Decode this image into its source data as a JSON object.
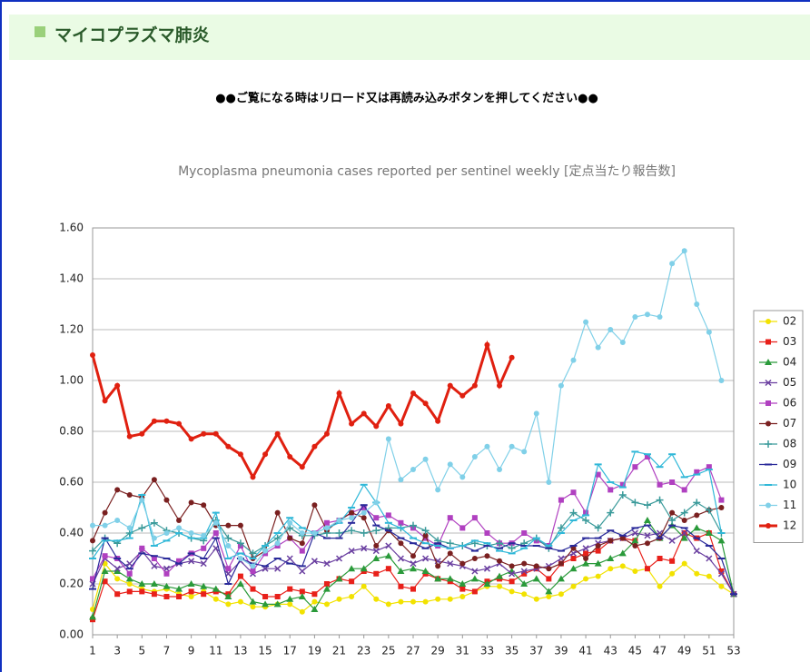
{
  "header": {
    "title": "マイコプラズマ肺炎"
  },
  "notice": "●●ご覧になる時はリロード又は再読み込みボタンを押してください●●",
  "chart_data": {
    "type": "line",
    "title": "Mycoplasma pneumonia cases reported per sentinel weekly [定点当たり報告数]",
    "x": [
      1,
      2,
      3,
      4,
      5,
      6,
      7,
      8,
      9,
      10,
      11,
      12,
      13,
      14,
      15,
      16,
      17,
      18,
      19,
      20,
      21,
      22,
      23,
      24,
      25,
      26,
      27,
      28,
      29,
      30,
      31,
      32,
      33,
      34,
      35,
      36,
      37,
      38,
      39,
      40,
      41,
      42,
      43,
      44,
      45,
      46,
      47,
      48,
      49,
      50,
      51,
      52,
      53
    ],
    "xlim": [
      1,
      53
    ],
    "xticks": [
      1,
      3,
      5,
      7,
      9,
      11,
      13,
      15,
      17,
      19,
      21,
      23,
      25,
      27,
      29,
      31,
      33,
      35,
      37,
      39,
      41,
      43,
      45,
      47,
      49,
      51,
      53
    ],
    "ylim": [
      0,
      1.6
    ],
    "yticks": [
      {
        "value": 0,
        "label": "0.00"
      },
      {
        "value": 0.2,
        "label": "0.20"
      },
      {
        "value": 0.4,
        "label": "0.40"
      },
      {
        "value": 0.6,
        "label": "0.60"
      },
      {
        "value": 0.8,
        "label": "0.80"
      },
      {
        "value": 1.0,
        "label": "1.00"
      },
      {
        "value": 1.2,
        "label": "1.20"
      },
      {
        "value": 1.4,
        "label": "1.40"
      },
      {
        "value": 1.6,
        "label": "1.60"
      }
    ],
    "grid": true,
    "legend": "right",
    "series": [
      {
        "name": "02",
        "color": "#f2e200",
        "marker": "circle",
        "values": [
          0.1,
          0.28,
          0.22,
          0.2,
          0.18,
          0.17,
          0.18,
          0.16,
          0.15,
          0.17,
          0.14,
          0.12,
          0.13,
          0.11,
          0.11,
          0.12,
          0.12,
          0.09,
          0.13,
          0.12,
          0.14,
          0.15,
          0.19,
          0.14,
          0.12,
          0.13,
          0.13,
          0.13,
          0.14,
          0.14,
          0.15,
          0.17,
          0.19,
          0.19,
          0.17,
          0.16,
          0.14,
          0.15,
          0.16,
          0.19,
          0.22,
          0.23,
          0.26,
          0.27,
          0.25,
          0.26,
          0.19,
          0.24,
          0.28,
          0.24,
          0.23,
          0.19,
          0.16
        ]
      },
      {
        "name": "03",
        "color": "#e8201a",
        "marker": "square",
        "values": [
          0.06,
          0.21,
          0.16,
          0.17,
          0.17,
          0.16,
          0.15,
          0.15,
          0.17,
          0.16,
          0.17,
          0.16,
          0.23,
          0.18,
          0.15,
          0.15,
          0.18,
          0.17,
          0.16,
          0.2,
          0.22,
          0.21,
          0.25,
          0.24,
          0.26,
          0.19,
          0.18,
          0.24,
          0.22,
          0.21,
          0.18,
          0.17,
          0.21,
          0.22,
          0.21,
          0.24,
          0.26,
          0.22,
          0.28,
          0.3,
          0.32,
          0.33,
          0.37,
          0.38,
          0.37,
          0.26,
          0.3,
          0.29,
          0.4,
          0.38,
          0.4,
          0.25,
          0.16
        ]
      },
      {
        "name": "04",
        "color": "#2a9a3a",
        "marker": "triangle",
        "values": [
          0.07,
          0.25,
          0.25,
          0.22,
          0.2,
          0.2,
          0.19,
          0.18,
          0.2,
          0.19,
          0.18,
          0.15,
          0.2,
          0.13,
          0.12,
          0.12,
          0.14,
          0.15,
          0.1,
          0.18,
          0.22,
          0.26,
          0.26,
          0.3,
          0.31,
          0.25,
          0.26,
          0.25,
          0.22,
          0.22,
          0.2,
          0.22,
          0.2,
          0.23,
          0.25,
          0.2,
          0.22,
          0.17,
          0.22,
          0.26,
          0.28,
          0.28,
          0.3,
          0.32,
          0.37,
          0.45,
          0.38,
          0.43,
          0.38,
          0.42,
          0.4,
          0.37,
          0.16
        ]
      },
      {
        "name": "05",
        "color": "#6a3fa0",
        "marker": "cross",
        "values": [
          0.2,
          0.3,
          0.26,
          0.28,
          0.33,
          0.27,
          0.26,
          0.28,
          0.29,
          0.28,
          0.34,
          0.24,
          0.29,
          0.24,
          0.26,
          0.26,
          0.3,
          0.25,
          0.29,
          0.28,
          0.3,
          0.33,
          0.34,
          0.33,
          0.35,
          0.3,
          0.28,
          0.3,
          0.29,
          0.28,
          0.27,
          0.25,
          0.26,
          0.28,
          0.24,
          0.25,
          0.26,
          0.27,
          0.3,
          0.32,
          0.34,
          0.36,
          0.37,
          0.38,
          0.4,
          0.39,
          0.4,
          0.37,
          0.4,
          0.33,
          0.3,
          0.24,
          0.16
        ]
      },
      {
        "name": "06",
        "color": "#b040c0",
        "marker": "square",
        "values": [
          0.22,
          0.31,
          0.3,
          0.24,
          0.34,
          0.3,
          0.24,
          0.29,
          0.32,
          0.34,
          0.4,
          0.26,
          0.35,
          0.25,
          0.32,
          0.35,
          0.38,
          0.33,
          0.4,
          0.44,
          0.45,
          0.48,
          0.5,
          0.46,
          0.47,
          0.44,
          0.42,
          0.38,
          0.35,
          0.46,
          0.42,
          0.46,
          0.4,
          0.36,
          0.36,
          0.4,
          0.37,
          0.35,
          0.53,
          0.56,
          0.48,
          0.63,
          0.57,
          0.59,
          0.66,
          0.7,
          0.59,
          0.6,
          0.57,
          0.64,
          0.66,
          0.53,
          null
        ]
      },
      {
        "name": "07",
        "color": "#7a2020",
        "marker": "circle",
        "values": [
          0.37,
          0.48,
          0.57,
          0.55,
          0.54,
          0.61,
          0.53,
          0.45,
          0.52,
          0.51,
          0.43,
          0.43,
          0.43,
          0.3,
          0.33,
          0.48,
          0.38,
          0.36,
          0.51,
          0.41,
          0.45,
          0.48,
          0.46,
          0.35,
          0.41,
          0.36,
          0.31,
          0.39,
          0.27,
          0.32,
          0.28,
          0.3,
          0.31,
          0.29,
          0.27,
          0.28,
          0.27,
          0.26,
          0.28,
          0.34,
          0.3,
          0.35,
          0.37,
          0.38,
          0.35,
          0.36,
          0.38,
          0.48,
          0.45,
          0.47,
          0.49,
          0.5,
          null
        ]
      },
      {
        "name": "08",
        "color": "#3a9a9a",
        "marker": "plus",
        "values": [
          0.33,
          0.38,
          0.36,
          0.4,
          0.42,
          0.44,
          0.41,
          0.4,
          0.38,
          0.37,
          0.45,
          0.38,
          0.36,
          0.32,
          0.35,
          0.38,
          0.42,
          0.39,
          0.39,
          0.4,
          0.4,
          0.41,
          0.4,
          0.41,
          0.42,
          0.42,
          0.43,
          0.41,
          0.37,
          0.36,
          0.35,
          0.36,
          0.35,
          0.36,
          0.34,
          0.36,
          0.38,
          0.34,
          0.42,
          0.48,
          0.45,
          0.42,
          0.48,
          0.55,
          0.52,
          0.51,
          0.53,
          0.45,
          0.48,
          0.52,
          0.49,
          0.4,
          null
        ]
      },
      {
        "name": "09",
        "color": "#2a2a9a",
        "marker": "dash",
        "values": [
          0.18,
          0.38,
          0.3,
          0.26,
          0.32,
          0.31,
          0.3,
          0.28,
          0.32,
          0.3,
          0.38,
          0.2,
          0.3,
          0.28,
          0.27,
          0.3,
          0.28,
          0.27,
          0.4,
          0.38,
          0.38,
          0.44,
          0.51,
          0.43,
          0.41,
          0.38,
          0.36,
          0.34,
          0.36,
          0.34,
          0.35,
          0.33,
          0.35,
          0.34,
          0.36,
          0.35,
          0.35,
          0.34,
          0.33,
          0.35,
          0.38,
          0.38,
          0.41,
          0.39,
          0.42,
          0.43,
          0.38,
          0.43,
          0.42,
          0.38,
          0.35,
          0.3,
          0.16
        ]
      },
      {
        "name": "10",
        "color": "#30b8d8",
        "marker": "dash",
        "values": [
          0.3,
          0.37,
          0.37,
          0.38,
          0.55,
          0.35,
          0.37,
          0.4,
          0.38,
          0.38,
          0.48,
          0.3,
          0.32,
          0.3,
          0.35,
          0.4,
          0.46,
          0.42,
          0.4,
          0.42,
          0.44,
          0.5,
          0.59,
          0.52,
          0.44,
          0.42,
          0.38,
          0.36,
          0.35,
          0.34,
          0.35,
          0.37,
          0.36,
          0.33,
          0.32,
          0.34,
          0.38,
          0.35,
          0.4,
          0.45,
          0.47,
          0.67,
          0.6,
          0.58,
          0.72,
          0.71,
          0.66,
          0.71,
          0.62,
          0.63,
          0.65,
          0.4,
          null
        ]
      },
      {
        "name": "11",
        "color": "#80d0e8",
        "marker": "circle",
        "values": [
          0.43,
          0.43,
          0.45,
          0.42,
          0.53,
          0.38,
          0.4,
          0.42,
          0.4,
          0.39,
          0.44,
          0.35,
          0.3,
          0.27,
          0.33,
          0.36,
          0.44,
          0.4,
          0.4,
          0.42,
          0.45,
          0.46,
          0.48,
          0.52,
          0.77,
          0.61,
          0.65,
          0.69,
          0.57,
          0.67,
          0.62,
          0.7,
          0.74,
          0.65,
          0.74,
          0.72,
          0.87,
          0.6,
          0.98,
          1.08,
          1.23,
          1.13,
          1.2,
          1.15,
          1.25,
          1.26,
          1.25,
          1.46,
          1.51,
          1.3,
          1.19,
          1.0,
          null
        ]
      },
      {
        "name": "12",
        "color": "#e02010",
        "marker": "circle",
        "width": 3,
        "values": [
          1.1,
          0.92,
          0.98,
          0.78,
          0.79,
          0.84,
          0.84,
          0.83,
          0.77,
          0.79,
          0.79,
          0.74,
          0.71,
          0.62,
          0.71,
          0.79,
          0.7,
          0.66,
          0.74,
          0.79,
          0.95,
          0.83,
          0.87,
          0.82,
          0.9,
          0.83,
          0.95,
          0.91,
          0.84,
          0.98,
          0.94,
          0.98,
          1.14,
          0.98,
          1.09,
          null,
          null,
          null,
          null,
          null,
          null,
          null,
          null,
          null,
          null,
          null,
          null,
          null,
          null,
          null,
          null,
          null,
          null
        ]
      }
    ]
  }
}
